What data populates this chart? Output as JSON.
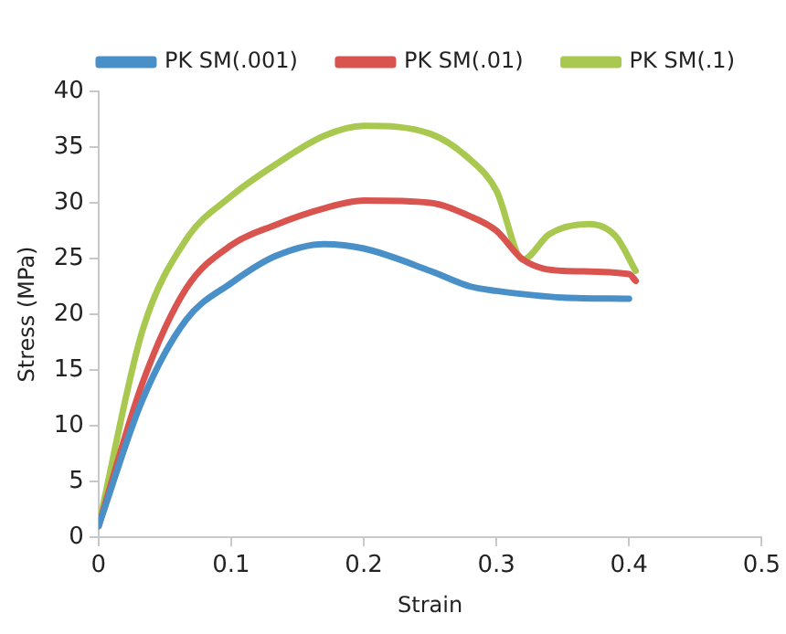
{
  "chart_data": {
    "type": "line",
    "xlabel": "Strain",
    "ylabel": "Stress (MPa)",
    "xlim": [
      0,
      0.5
    ],
    "xticks": [
      0,
      0.1,
      0.2,
      0.3,
      0.4,
      0.5
    ],
    "ylim": [
      0,
      40
    ],
    "yticks": [
      0,
      5,
      10,
      15,
      20,
      25,
      30,
      35,
      40
    ],
    "grid": false,
    "legend": "top right",
    "marker": "none",
    "line_style": "solid",
    "series": [
      {
        "name": "PK SM(.001)",
        "color": "#4a90c8",
        "x": [
          0,
          0.033,
          0.066,
          0.1,
          0.133,
          0.17,
          0.2,
          0.25,
          0.28,
          0.3,
          0.35,
          0.4
        ],
        "values": [
          1,
          12.3,
          19.5,
          22.8,
          25.2,
          26.3,
          25.9,
          23.9,
          22.5,
          22.1,
          21.5,
          21.4
        ]
      },
      {
        "name": "PK SM(.01)",
        "color": "#d9534f",
        "x": [
          0,
          0.033,
          0.066,
          0.1,
          0.133,
          0.17,
          0.2,
          0.25,
          0.28,
          0.3,
          0.32,
          0.35,
          0.4,
          0.405
        ],
        "values": [
          1,
          13.8,
          22.3,
          26.2,
          28,
          29.5,
          30.2,
          30,
          28.8,
          27.5,
          24.9,
          23.9,
          23.6,
          23
        ]
      },
      {
        "name": "PK SM(.1)",
        "color": "#a8c850",
        "x": [
          0,
          0.033,
          0.066,
          0.1,
          0.133,
          0.17,
          0.2,
          0.25,
          0.28,
          0.3,
          0.32,
          0.34,
          0.37,
          0.39,
          0.405
        ],
        "values": [
          1,
          18.5,
          26.7,
          30.6,
          33.4,
          36,
          36.9,
          36.2,
          33.9,
          31.1,
          24.9,
          27.2,
          28.1,
          27,
          23.9
        ]
      }
    ]
  }
}
